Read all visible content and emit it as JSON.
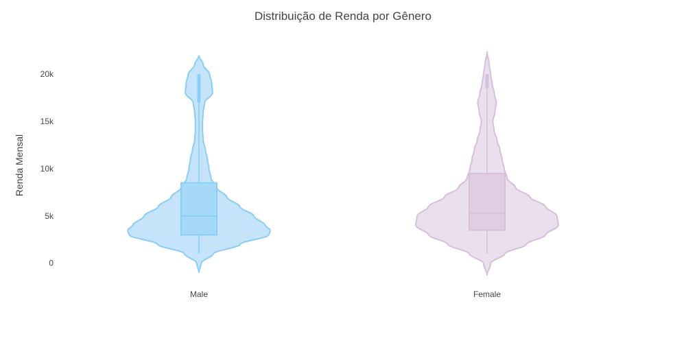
{
  "chart_data": {
    "type": "violin",
    "title": "Distribuição de Renda por Gênero",
    "xlabel": "",
    "ylabel": "Renda Mensal",
    "ylim": [
      -1400,
      23500
    ],
    "y_ticks": [
      {
        "value": 0,
        "label": "0"
      },
      {
        "value": 5000,
        "label": "5k"
      },
      {
        "value": 10000,
        "label": "10k"
      },
      {
        "value": 15000,
        "label": "15k"
      },
      {
        "value": 20000,
        "label": "20k"
      }
    ],
    "grid": false,
    "legend": "none",
    "categories": [
      "Male",
      "Female"
    ],
    "series": [
      {
        "category": "Male",
        "fill_color": "#c5e4f9",
        "line_color": "#8acdf5",
        "box_fill": "#a6d8f7",
        "min": 1000,
        "q1": 3000,
        "median": 5000,
        "q3": 8500,
        "upper_fence": 17000,
        "max": 20000,
        "kde_min": -1000,
        "kde_max": 22000,
        "density": [
          [
            -1000,
            0.0
          ],
          [
            0,
            0.03
          ],
          [
            1000,
            0.2
          ],
          [
            2000,
            0.58
          ],
          [
            3000,
            0.98
          ],
          [
            3500,
            1.0
          ],
          [
            4000,
            0.93
          ],
          [
            5000,
            0.77
          ],
          [
            6000,
            0.57
          ],
          [
            7000,
            0.39
          ],
          [
            8000,
            0.25
          ],
          [
            9000,
            0.17
          ],
          [
            10000,
            0.14
          ],
          [
            11000,
            0.12
          ],
          [
            12000,
            0.09
          ],
          [
            13000,
            0.06
          ],
          [
            14000,
            0.05
          ],
          [
            15000,
            0.05
          ],
          [
            16000,
            0.06
          ],
          [
            17000,
            0.08
          ],
          [
            18000,
            0.19
          ],
          [
            19000,
            0.18
          ],
          [
            20000,
            0.15
          ],
          [
            21000,
            0.06
          ],
          [
            22000,
            0.0
          ]
        ]
      },
      {
        "category": "Female",
        "fill_color": "#e9dfed",
        "line_color": "#d6bfd9",
        "box_fill": "#e0cde2",
        "min": 1000,
        "q1": 3500,
        "median": 5300,
        "q3": 9500,
        "upper_fence": 18500,
        "max": 20000,
        "kde_min": -1300,
        "kde_max": 22400,
        "density": [
          [
            -1300,
            0.0
          ],
          [
            0,
            0.05
          ],
          [
            1000,
            0.25
          ],
          [
            2000,
            0.55
          ],
          [
            3000,
            0.82
          ],
          [
            4000,
            1.0
          ],
          [
            5000,
            0.98
          ],
          [
            6000,
            0.82
          ],
          [
            7000,
            0.6
          ],
          [
            8000,
            0.4
          ],
          [
            9000,
            0.28
          ],
          [
            10000,
            0.24
          ],
          [
            11000,
            0.21
          ],
          [
            12000,
            0.18
          ],
          [
            13000,
            0.14
          ],
          [
            14000,
            0.1
          ],
          [
            15000,
            0.08
          ],
          [
            16000,
            0.11
          ],
          [
            17000,
            0.13
          ],
          [
            18000,
            0.1
          ],
          [
            19000,
            0.07
          ],
          [
            20000,
            0.05
          ],
          [
            21000,
            0.03
          ],
          [
            22400,
            0.0
          ]
        ]
      }
    ]
  }
}
